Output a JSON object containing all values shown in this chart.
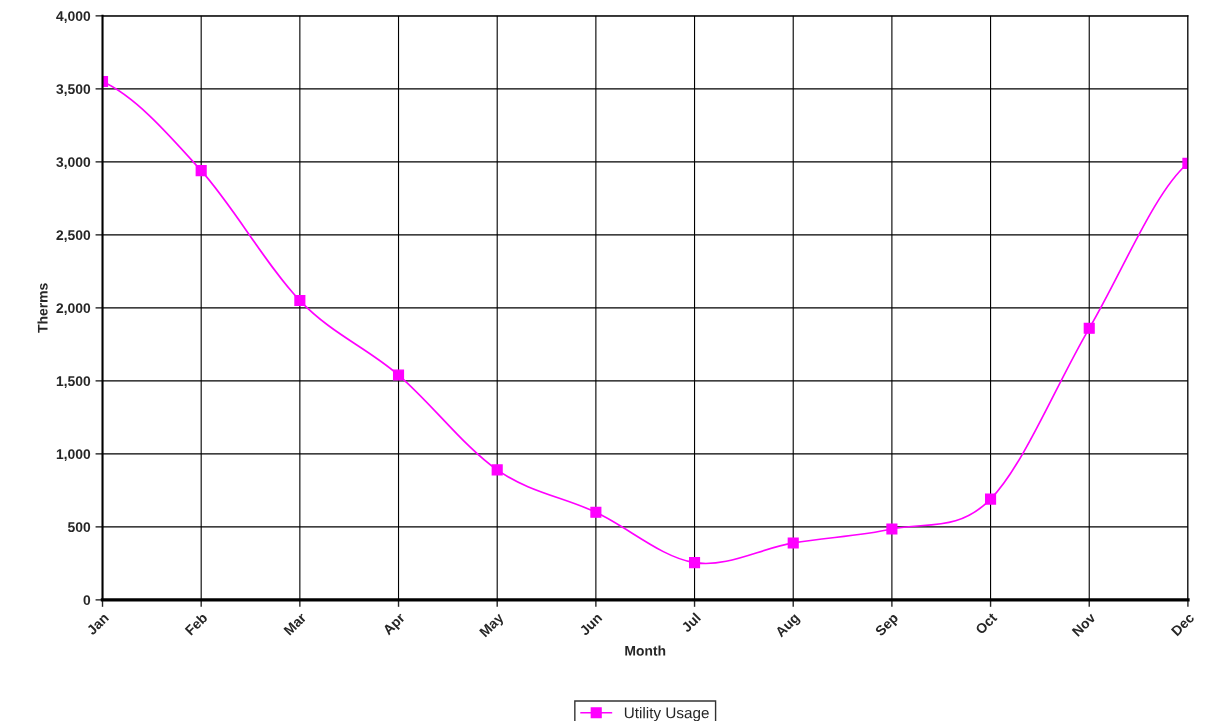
{
  "chart_data": {
    "type": "line",
    "xlabel": "Month",
    "ylabel": "Therms",
    "categories": [
      "Jan",
      "Feb",
      "Mar",
      "Apr",
      "May",
      "Jun",
      "Jul",
      "Aug",
      "Sep",
      "Oct",
      "Nov",
      "Dec"
    ],
    "series": [
      {
        "name": "Utility Usage",
        "color": "#ff00ff",
        "values": [
          3550,
          2940,
          2050,
          1540,
          890,
          600,
          255,
          390,
          485,
          690,
          1860,
          2990
        ]
      }
    ],
    "ylim": [
      0,
      4000
    ],
    "yticks": [
      {
        "value": 0,
        "label": "0"
      },
      {
        "value": 500,
        "label": "500"
      },
      {
        "value": 1000,
        "label": "1,000"
      },
      {
        "value": 1500,
        "label": "1,500"
      },
      {
        "value": 2000,
        "label": "2,000"
      },
      {
        "value": 2500,
        "label": "2,500"
      },
      {
        "value": 3000,
        "label": "3,000"
      },
      {
        "value": 3500,
        "label": "3,500"
      },
      {
        "value": 4000,
        "label": "4,000"
      }
    ],
    "grid": true,
    "legend": "bottom",
    "marker": "square",
    "line_style": "solid"
  }
}
